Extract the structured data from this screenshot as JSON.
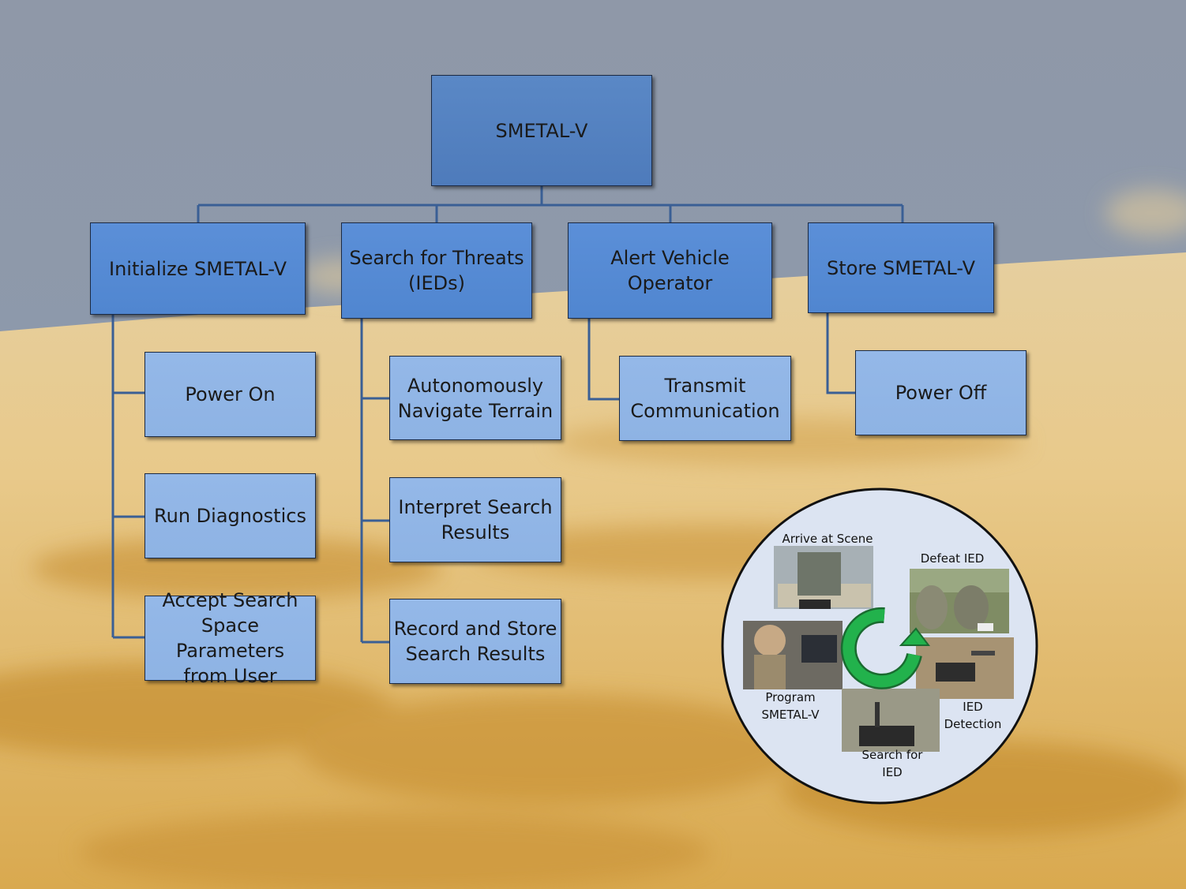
{
  "root": {
    "label": "SMETAL-V"
  },
  "functions": [
    {
      "label": "Initialize SMETAL-V",
      "subs": [
        "Power On",
        "Run Diagnostics",
        "Accept Search\nSpace Parameters\nfrom User"
      ]
    },
    {
      "label": "Search for Threats\n(IEDs)",
      "subs": [
        "Autonomously\nNavigate Terrain",
        "Interpret Search\nResults",
        "Record and Store\nSearch Results"
      ]
    },
    {
      "label": "Alert Vehicle\nOperator",
      "subs": [
        "Transmit\nCommunication"
      ]
    },
    {
      "label": "Store SMETAL-V",
      "subs": [
        "Power Off"
      ]
    }
  ],
  "cycle": {
    "steps": [
      "Arrive at Scene",
      "Defeat IED",
      "IED\nDetection",
      "Search for\nIED",
      "Program\nSMETAL-V"
    ],
    "arrow_color": "#22b24c"
  },
  "colors": {
    "sky": "#8e99ab",
    "sand": "#e2bf7a",
    "line": "#3a5f95"
  }
}
